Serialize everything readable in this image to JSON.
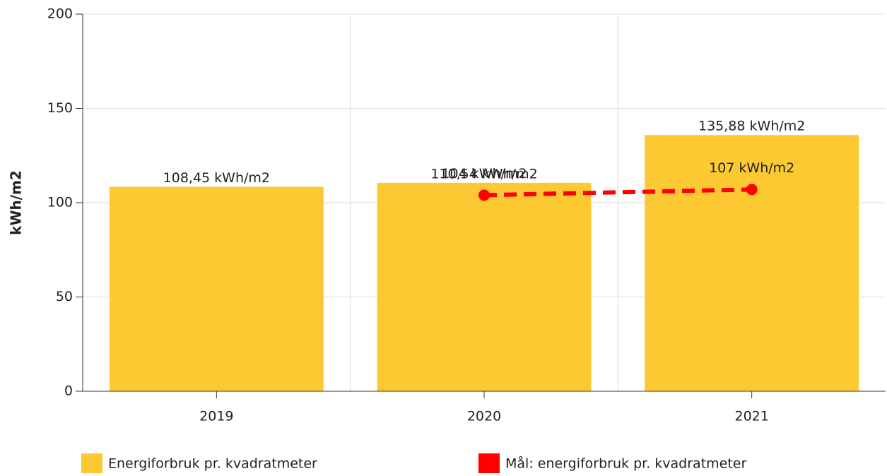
{
  "chart_data": {
    "type": "bar",
    "y_label": "kWh/m2",
    "categories": [
      "2019",
      "2020",
      "2021"
    ],
    "series": [
      {
        "name": "Energiforbruk pr. kvadratmeter",
        "type": "bar",
        "color": "#fdc933",
        "values": [
          108.45,
          110.54,
          135.88
        ],
        "value_labels": [
          "108,45 kWh/m2",
          "110,54 kWh/m2",
          "135,88 kWh/m2"
        ]
      },
      {
        "name": "Mål: energiforbruk pr. kvadratmeter",
        "type": "line",
        "color": "#ff0000",
        "values": [
          null,
          104,
          107
        ],
        "value_labels": [
          null,
          "104 kWh/m2",
          "107 kWh/m2"
        ]
      }
    ],
    "ylim": [
      0,
      200
    ],
    "yticks": [
      0,
      50,
      100,
      150,
      200
    ],
    "grid": true,
    "legend": "bottom"
  }
}
